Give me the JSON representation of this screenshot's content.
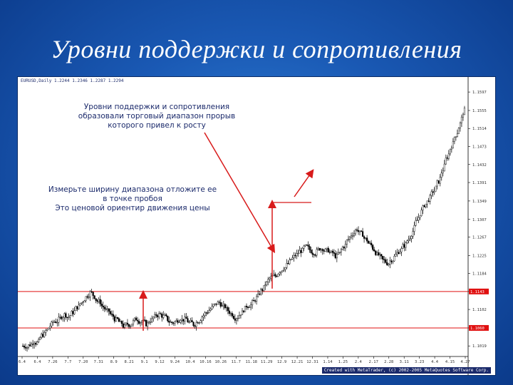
{
  "slide": {
    "title": "Уровни поддержки и сопротивления"
  },
  "chart_header": "EURUSD,Daily  1.2244 1.2346 1.2287 1.2294",
  "credit": "Created with MetaTrader, (c) 2002-2005 MetaQuotes Software Corp.",
  "annotations": {
    "range_note": [
      "Уровни поддержки и сопротивления",
      "образовали торговый диапазон прорыв",
      "которого привел к росту"
    ],
    "measure_note": [
      "Измерьте ширину диапазона отложите ее",
      "в точке пробоя",
      "Это ценовой ориентир движения цены"
    ]
  },
  "colors": {
    "background_blue": "#1a59b4",
    "level_line": "#e01010",
    "arrow": "#d81b1b",
    "candles": "#000000"
  },
  "chart_data": {
    "type": "candlestick",
    "title": "",
    "x_ticks": [
      "6.4",
      "6.4",
      "7.26",
      "7.7",
      "7.20",
      "7.31",
      "8.9",
      "8.21",
      "9.1",
      "9.12",
      "9.24",
      "10.4",
      "10.16",
      "10.26",
      "11.7",
      "11.18",
      "11.29",
      "12.9",
      "12.21",
      "12.31",
      "1.14",
      "1.25",
      "2.4",
      "2.17",
      "2.28",
      "3.11",
      "3.23",
      "4.4",
      "4.15",
      "4.27"
    ],
    "y_ticks": [
      "1.1597",
      "1.1555",
      "1.1514",
      "1.1473",
      "1.1432",
      "1.1391",
      "1.1349",
      "1.1307",
      "1.1267",
      "1.1225",
      "1.1184",
      "1.1143",
      "1.1102",
      "1.1060",
      "1.1019"
    ],
    "ylim": [
      1.0995,
      1.1615
    ],
    "support_level": 1.106,
    "resistance_level": 1.1143,
    "resistance_label": "1.1143",
    "support_label": "1.1060",
    "close_series": [
      1.1019,
      1.1022,
      1.103,
      1.1028,
      1.1045,
      1.1055,
      1.1068,
      1.1075,
      1.1082,
      1.109,
      1.1085,
      1.1096,
      1.1108,
      1.1118,
      1.113,
      1.114,
      1.1132,
      1.112,
      1.1108,
      1.1098,
      1.1088,
      1.1078,
      1.107,
      1.1062,
      1.1068,
      1.1074,
      1.108,
      1.1076,
      1.1069,
      1.1078,
      1.1085,
      1.109,
      1.1086,
      1.1079,
      1.1072,
      1.1075,
      1.1082,
      1.1079,
      1.1072,
      1.1068,
      1.1076,
      1.1086,
      1.1095,
      1.1103,
      1.1112,
      1.1118,
      1.1108,
      1.11,
      1.1092,
      1.1084,
      1.1094,
      1.1104,
      1.1112,
      1.112,
      1.1132,
      1.1148,
      1.1162,
      1.1174,
      1.1178,
      1.119,
      1.1198,
      1.1206,
      1.1218,
      1.1226,
      1.1236,
      1.1244,
      1.1238,
      1.1232,
      1.1238,
      1.1242,
      1.1236,
      1.123,
      1.1224,
      1.123,
      1.1246,
      1.1262,
      1.1275,
      1.1286,
      1.1274,
      1.1262,
      1.125,
      1.1238,
      1.1226,
      1.1214,
      1.1208,
      1.1216,
      1.1226,
      1.1236,
      1.1248,
      1.1262,
      1.128,
      1.1305,
      1.1325,
      1.1342,
      1.1356,
      1.1372,
      1.1394,
      1.142,
      1.145,
      1.1475,
      1.15,
      1.1525,
      1.1555
    ]
  }
}
